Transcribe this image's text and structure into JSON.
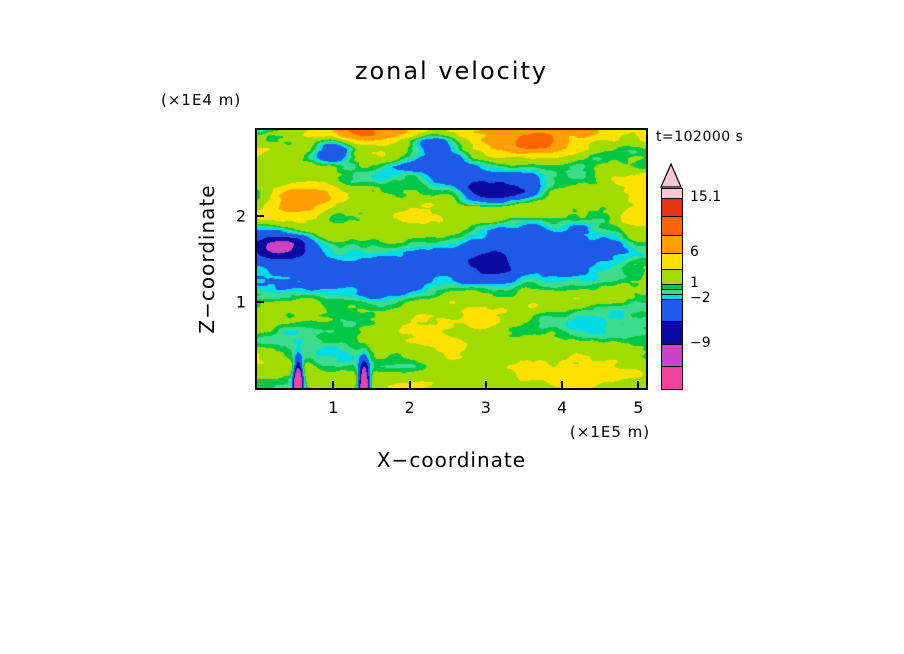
{
  "chart_data": {
    "type": "heatmap",
    "title": "zonal velocity",
    "time_label": "t=102000 s",
    "xlabel": "X−coordinate",
    "ylabel": "Z−coordinate",
    "x_unit": "(×1E5 m)",
    "y_unit": "(×1E4 m)",
    "x_range": [
      0,
      5.1
    ],
    "y_range": [
      0,
      3.0
    ],
    "x_ticks": [
      1,
      2,
      3,
      4,
      5
    ],
    "y_ticks": [
      1,
      2
    ],
    "grid": false,
    "legend_position": "right-colorbar",
    "colorbar": {
      "orientation": "vertical",
      "over_arrow": true,
      "tick_labels": [
        "15.1",
        "6",
        "1",
        "−2",
        "−9"
      ],
      "tick_values": [
        15.1,
        6,
        1,
        -2,
        -9
      ],
      "levels": [
        -13,
        -9,
        -5.5,
        -2,
        -1,
        0,
        1,
        3.5,
        6,
        9,
        12,
        15.1
      ],
      "colors": [
        "#F0439E",
        "#C943C3",
        "#0A0AA0",
        "#1E5AE6",
        "#00DCE6",
        "#3CDC8C",
        "#00C846",
        "#A0DC00",
        "#FFE100",
        "#FFA000",
        "#FF6400",
        "#E63214",
        "#F5C8D2"
      ]
    }
  }
}
